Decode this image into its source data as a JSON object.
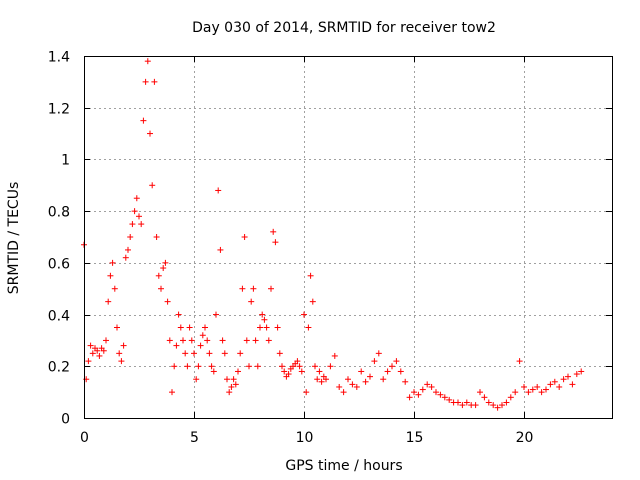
{
  "chart_data": {
    "type": "scatter",
    "title": "Day 030 of 2014, SRMTID for receiver tow2",
    "xlabel": "GPS time / hours",
    "ylabel": "SRMTID / TECUs",
    "xlim": [
      0,
      24
    ],
    "ylim": [
      0,
      1.4
    ],
    "xticks": [
      0,
      5,
      10,
      15,
      20
    ],
    "xtick_labels": [
      "0",
      "5",
      "10",
      "15",
      "20"
    ],
    "yticks": [
      0,
      0.2,
      0.4,
      0.6,
      0.8,
      1,
      1.2,
      1.4
    ],
    "ytick_labels": [
      "0",
      "0.2",
      "0.4",
      "0.6",
      "0.8",
      "1",
      "1.2",
      "1.4"
    ],
    "grid": true,
    "marker": "+",
    "color": "#ff0000",
    "series": [
      {
        "name": "SRMTID",
        "x": [
          0.0,
          0.1,
          0.2,
          0.3,
          0.4,
          0.5,
          0.6,
          0.7,
          0.8,
          0.9,
          1.0,
          1.1,
          1.2,
          1.3,
          1.4,
          1.5,
          1.6,
          1.7,
          1.8,
          1.9,
          2.0,
          2.1,
          2.2,
          2.3,
          2.4,
          2.5,
          2.6,
          2.7,
          2.8,
          2.9,
          3.0,
          3.1,
          3.2,
          3.3,
          3.4,
          3.5,
          3.6,
          3.7,
          3.8,
          3.9,
          4.0,
          4.1,
          4.2,
          4.3,
          4.4,
          4.5,
          4.6,
          4.7,
          4.8,
          4.9,
          5.0,
          5.1,
          5.2,
          5.3,
          5.4,
          5.5,
          5.6,
          5.7,
          5.8,
          5.9,
          6.0,
          6.1,
          6.2,
          6.3,
          6.4,
          6.5,
          6.6,
          6.7,
          6.8,
          6.9,
          7.0,
          7.1,
          7.2,
          7.3,
          7.4,
          7.5,
          7.6,
          7.7,
          7.8,
          7.9,
          8.0,
          8.1,
          8.2,
          8.3,
          8.4,
          8.5,
          8.6,
          8.7,
          8.8,
          8.9,
          9.0,
          9.1,
          9.2,
          9.3,
          9.4,
          9.5,
          9.6,
          9.7,
          9.8,
          9.9,
          10.0,
          10.1,
          10.2,
          10.3,
          10.4,
          10.5,
          10.6,
          10.7,
          10.8,
          10.9,
          11.0,
          11.2,
          11.4,
          11.6,
          11.8,
          12.0,
          12.2,
          12.4,
          12.6,
          12.8,
          13.0,
          13.2,
          13.4,
          13.6,
          13.8,
          14.0,
          14.2,
          14.4,
          14.6,
          14.8,
          15.0,
          15.2,
          15.4,
          15.6,
          15.8,
          16.0,
          16.2,
          16.4,
          16.6,
          16.8,
          17.0,
          17.2,
          17.4,
          17.6,
          17.8,
          18.0,
          18.2,
          18.4,
          18.6,
          18.8,
          19.0,
          19.2,
          19.4,
          19.6,
          19.8,
          20.0,
          20.2,
          20.4,
          20.6,
          20.8,
          21.0,
          21.2,
          21.4,
          21.6,
          21.8,
          22.0,
          22.2,
          22.4,
          22.6
        ],
        "y": [
          0.67,
          0.15,
          0.22,
          0.28,
          0.25,
          0.27,
          0.26,
          0.24,
          0.27,
          0.26,
          0.3,
          0.45,
          0.55,
          0.6,
          0.5,
          0.35,
          0.25,
          0.22,
          0.28,
          0.62,
          0.65,
          0.7,
          0.75,
          0.8,
          0.85,
          0.78,
          0.75,
          1.15,
          1.3,
          1.38,
          1.1,
          0.9,
          1.3,
          0.7,
          0.55,
          0.5,
          0.58,
          0.6,
          0.45,
          0.3,
          0.1,
          0.2,
          0.28,
          0.4,
          0.35,
          0.3,
          0.25,
          0.2,
          0.35,
          0.3,
          0.25,
          0.15,
          0.2,
          0.28,
          0.32,
          0.35,
          0.3,
          0.25,
          0.2,
          0.18,
          0.4,
          0.88,
          0.65,
          0.3,
          0.25,
          0.15,
          0.1,
          0.12,
          0.15,
          0.13,
          0.18,
          0.25,
          0.5,
          0.7,
          0.3,
          0.2,
          0.45,
          0.5,
          0.3,
          0.2,
          0.35,
          0.4,
          0.38,
          0.35,
          0.3,
          0.5,
          0.72,
          0.68,
          0.35,
          0.25,
          0.2,
          0.18,
          0.16,
          0.17,
          0.19,
          0.2,
          0.21,
          0.22,
          0.2,
          0.18,
          0.4,
          0.1,
          0.35,
          0.55,
          0.45,
          0.2,
          0.15,
          0.18,
          0.14,
          0.16,
          0.15,
          0.2,
          0.24,
          0.12,
          0.1,
          0.15,
          0.13,
          0.12,
          0.18,
          0.14,
          0.16,
          0.22,
          0.25,
          0.15,
          0.18,
          0.2,
          0.22,
          0.18,
          0.14,
          0.08,
          0.1,
          0.09,
          0.11,
          0.13,
          0.12,
          0.1,
          0.09,
          0.08,
          0.07,
          0.06,
          0.06,
          0.05,
          0.06,
          0.05,
          0.05,
          0.1,
          0.08,
          0.06,
          0.05,
          0.04,
          0.05,
          0.06,
          0.08,
          0.1,
          0.22,
          0.12,
          0.1,
          0.11,
          0.12,
          0.1,
          0.11,
          0.13,
          0.14,
          0.12,
          0.15,
          0.16,
          0.13,
          0.17,
          0.18
        ]
      }
    ]
  }
}
